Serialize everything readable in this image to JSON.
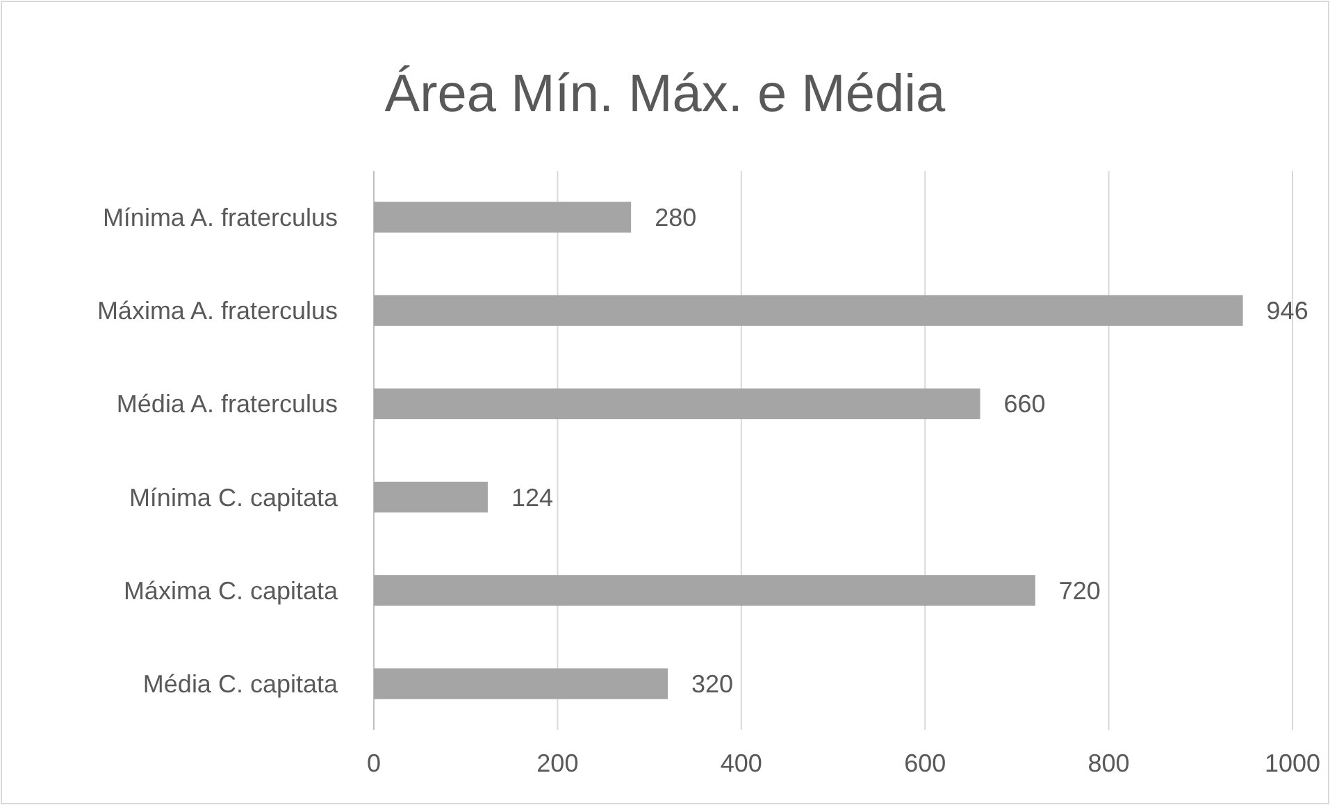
{
  "chart_data": {
    "type": "bar",
    "orientation": "horizontal",
    "title": "Área Mín. Máx. e Média",
    "categories": [
      "Mínima A. fraterculus",
      "Máxima A. fraterculus",
      "Média A. fraterculus",
      "Mínima C. capitata",
      "Máxima C. capitata",
      "Média C. capitata"
    ],
    "values": [
      280,
      946,
      660,
      124,
      720,
      320
    ],
    "color": "#a5a5a5",
    "xlim": [
      0,
      1000
    ],
    "xticks": [
      0,
      200,
      400,
      600,
      800,
      1000
    ],
    "grid": "x",
    "data_labels": true
  }
}
